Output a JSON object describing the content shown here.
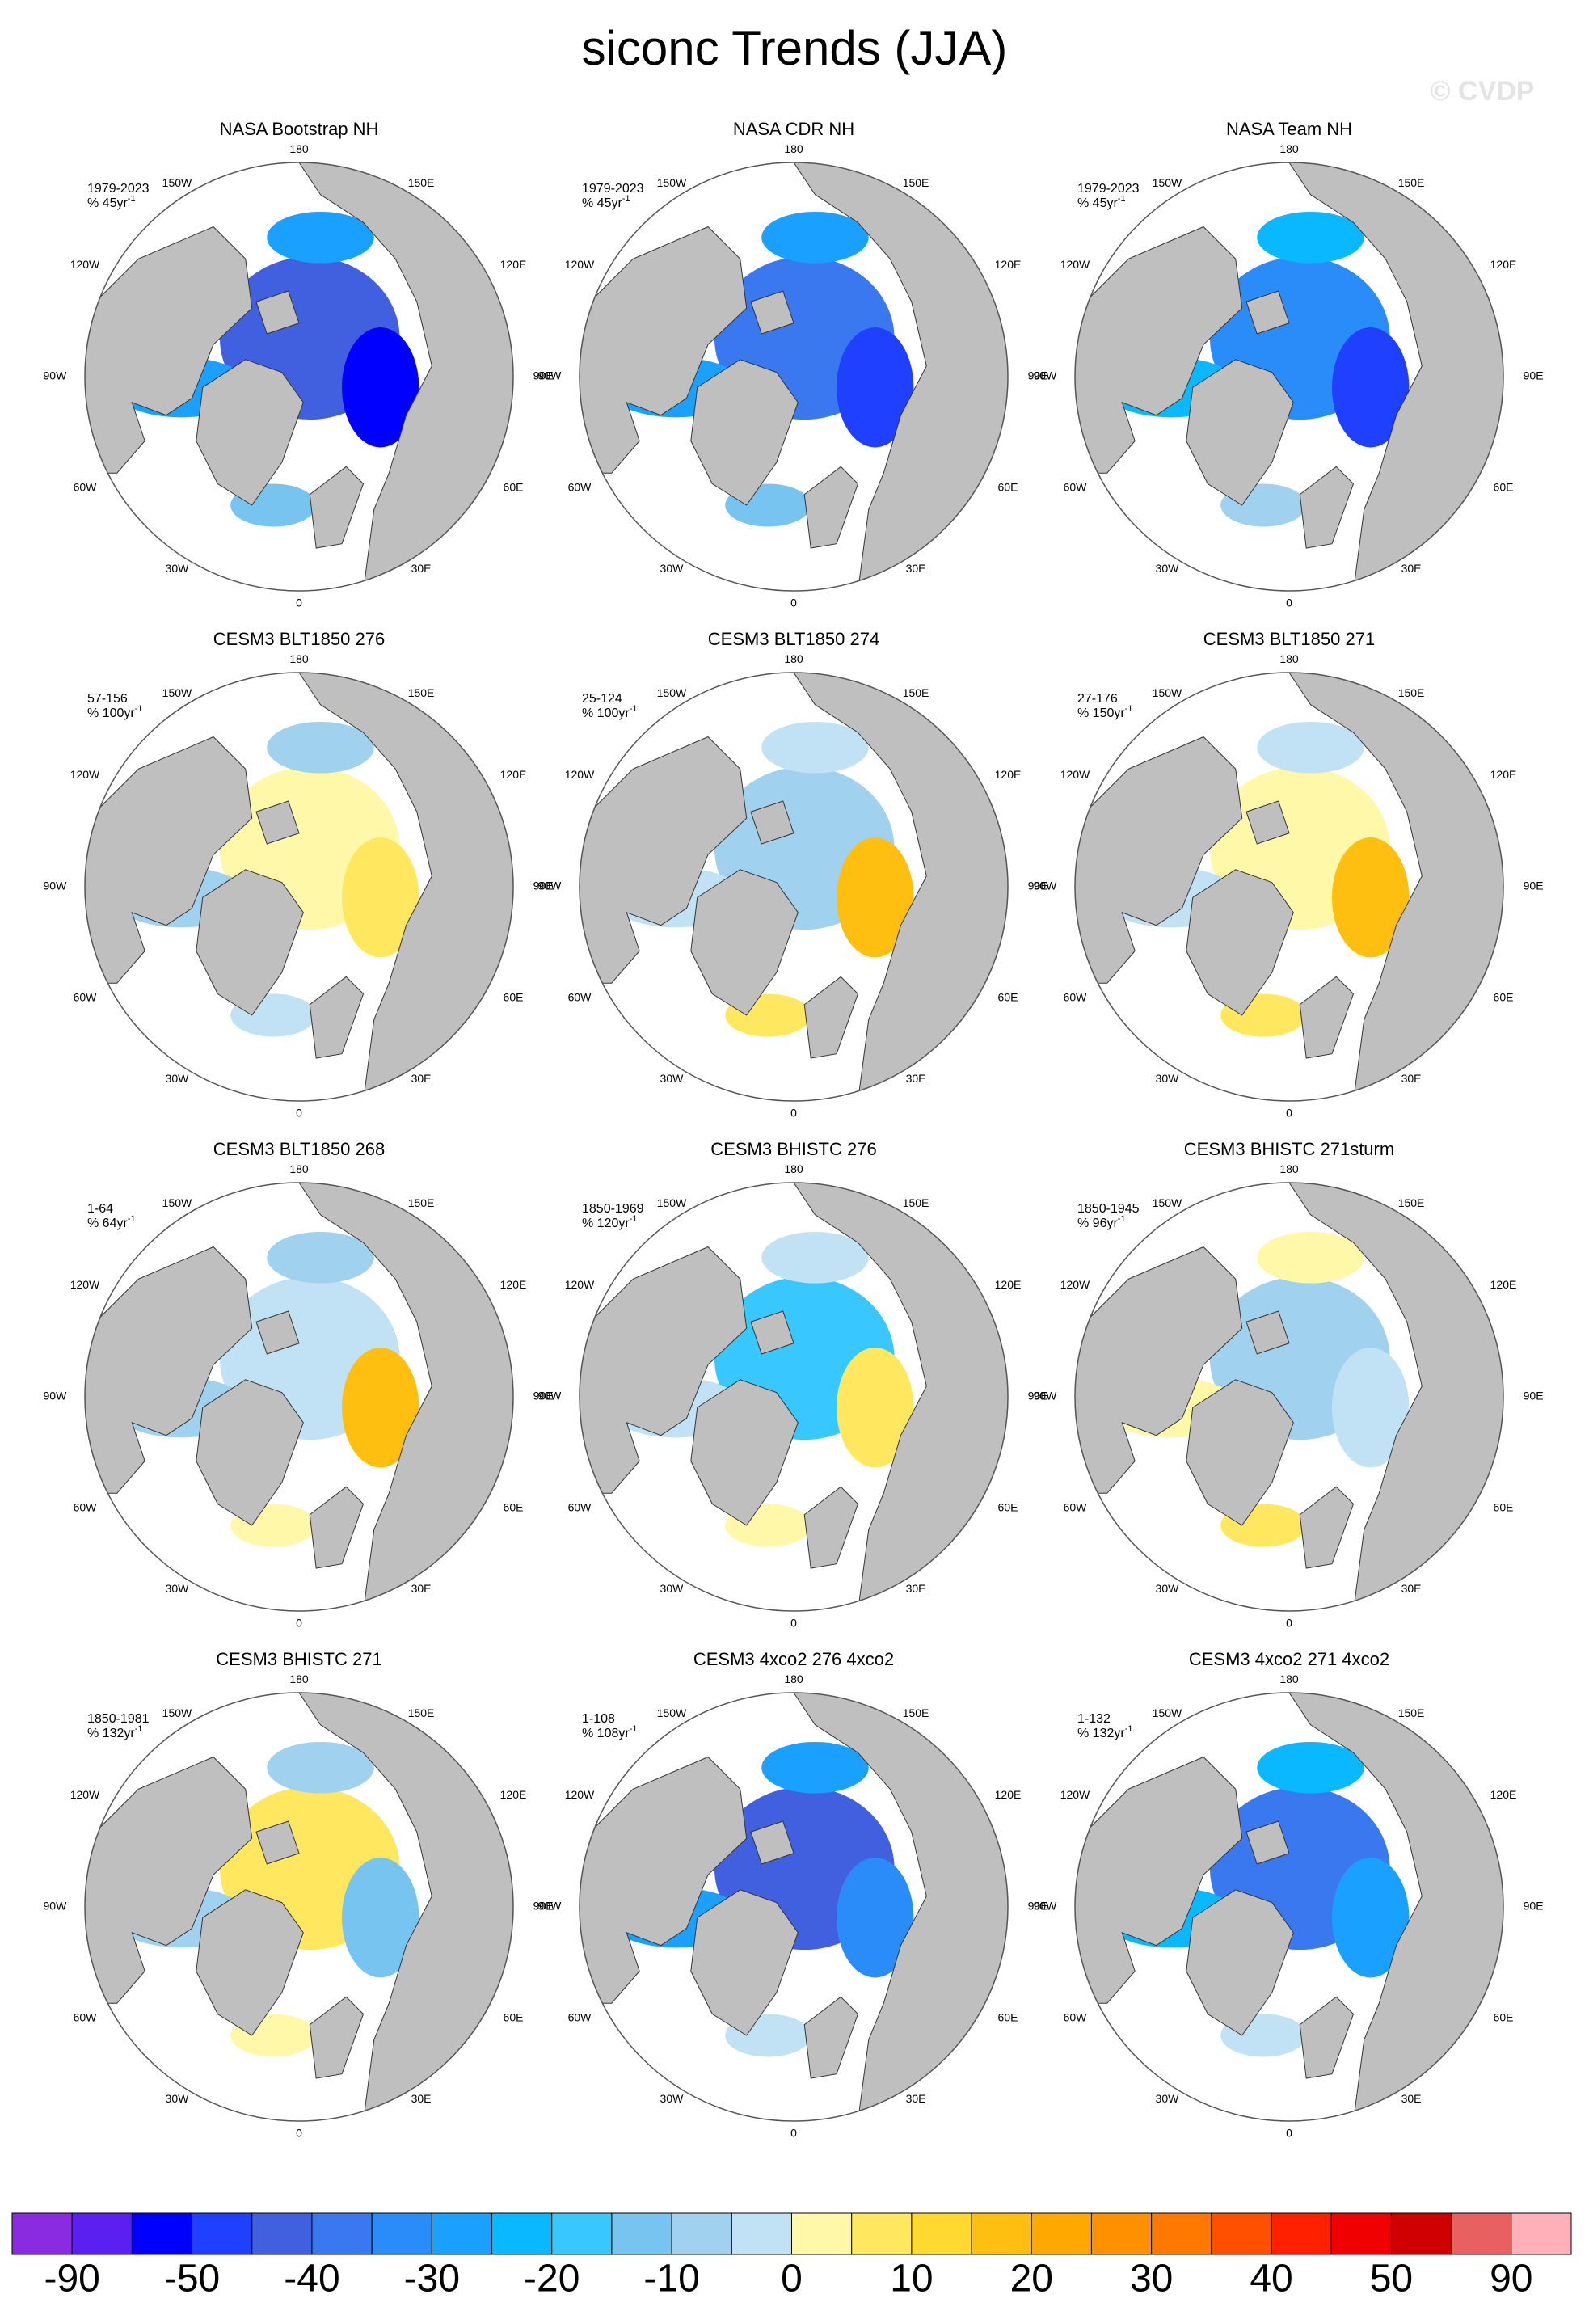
{
  "title": "siconc Trends (JJA)",
  "watermark": "© CVDP",
  "longitudes": [
    "180",
    "150E",
    "120E",
    "90E",
    "60E",
    "30E",
    "0",
    "30W",
    "60W",
    "90W",
    "120W",
    "150W"
  ],
  "panels": [
    {
      "title": "NASA Bootstrap NH",
      "period": "1979-2023",
      "units": "% 45yr",
      "exponent": "-1"
    },
    {
      "title": "NASA CDR NH",
      "period": "1979-2023",
      "units": "% 45yr",
      "exponent": "-1"
    },
    {
      "title": "NASA Team NH",
      "period": "1979-2023",
      "units": "% 45yr",
      "exponent": "-1"
    },
    {
      "title": "CESM3 BLT1850 276",
      "period": "57-156",
      "units": "% 100yr",
      "exponent": "-1"
    },
    {
      "title": "CESM3 BLT1850 274",
      "period": "25-124",
      "units": "% 100yr",
      "exponent": "-1"
    },
    {
      "title": "CESM3 BLT1850 271",
      "period": "27-176",
      "units": "% 150yr",
      "exponent": "-1"
    },
    {
      "title": "CESM3 BLT1850 268",
      "period": "1-64",
      "units": "% 64yr",
      "exponent": "-1"
    },
    {
      "title": "CESM3 BHISTC 276",
      "period": "1850-1969",
      "units": "% 120yr",
      "exponent": "-1"
    },
    {
      "title": "CESM3 BHISTC 271sturm",
      "period": "1850-1945",
      "units": "% 96yr",
      "exponent": "-1"
    },
    {
      "title": "CESM3 BHISTC 271",
      "period": "1850-1981",
      "units": "% 132yr",
      "exponent": "-1"
    },
    {
      "title": "CESM3 4xco2 276 4xco2",
      "period": "1-108",
      "units": "% 108yr",
      "exponent": "-1"
    },
    {
      "title": "CESM3 4xco2 271 4xco2",
      "period": "1-132",
      "units": "% 132yr",
      "exponent": "-1"
    }
  ],
  "colorbar": {
    "colors": [
      "#8a2be2",
      "#5a20f0",
      "#0000ff",
      "#2040ff",
      "#4060e0",
      "#3a78f0",
      "#2a8cf8",
      "#1aa0ff",
      "#0ab8ff",
      "#38c8ff",
      "#78c4f0",
      "#a0d2f0",
      "#c0e2f4",
      "#fff8a8",
      "#ffe860",
      "#ffd830",
      "#ffbf10",
      "#ffa800",
      "#ff9000",
      "#ff7800",
      "#ff5000",
      "#ff2000",
      "#f00000",
      "#d00000",
      "#e86060",
      "#ffb0b8"
    ],
    "labels": [
      -90,
      -50,
      -40,
      -30,
      -20,
      -10,
      0,
      10,
      20,
      30,
      40,
      50,
      90
    ]
  }
}
